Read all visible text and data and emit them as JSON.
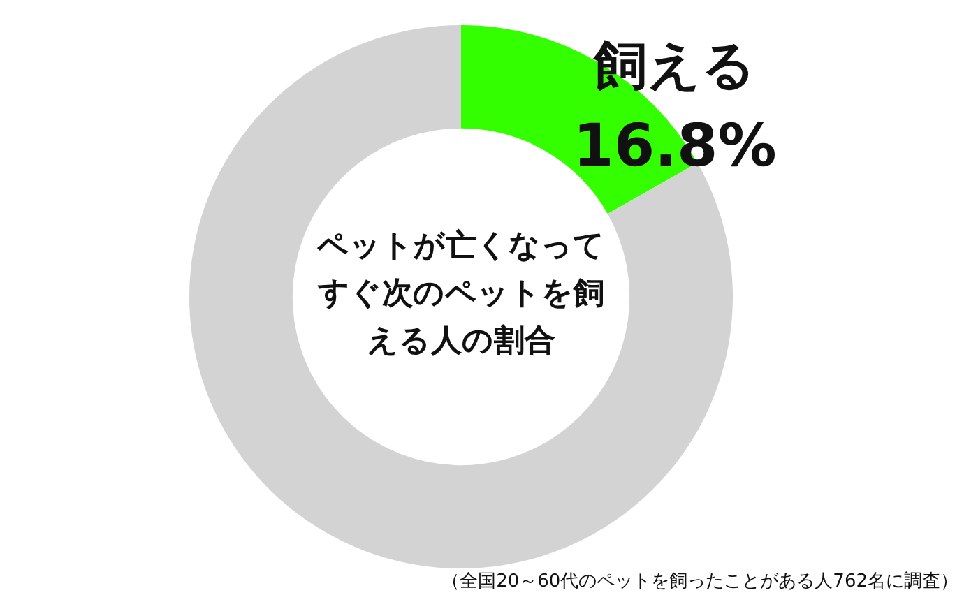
{
  "chart_data": {
    "type": "donut",
    "title": "ペットが亡くなってすぐ次のペットを飼える人の割合",
    "categories": [
      "飼える",
      null
    ],
    "values": [
      16.8,
      83.2
    ],
    "colors": [
      "#33ff00",
      "#d3d3d3"
    ],
    "value_labels": [
      "16.8%",
      null
    ],
    "legend": false,
    "annotations": [
      "（全国20～60代のペットを飼ったことがある人762名に調査）"
    ]
  }
}
